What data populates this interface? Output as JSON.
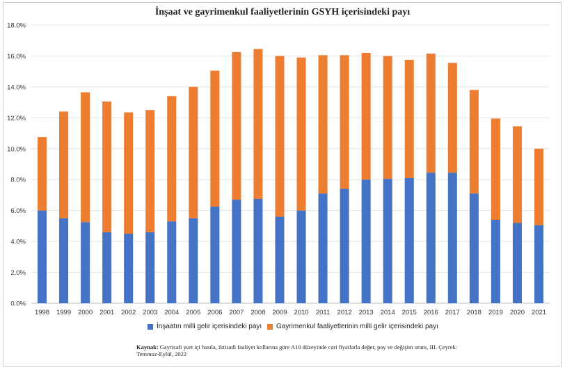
{
  "chart_data": {
    "type": "bar",
    "stacked": true,
    "title": "İnşaat ve gayrimenkul faaliyetlerinin GSYH içerisindeki payı",
    "categories": [
      "1998",
      "1999",
      "2000",
      "2001",
      "2002",
      "2003",
      "2004",
      "2005",
      "2006",
      "2007",
      "2008",
      "2009",
      "2010",
      "2011",
      "2012",
      "2013",
      "2014",
      "2015",
      "2016",
      "2017",
      "2018",
      "2019",
      "2020",
      "2021"
    ],
    "series": [
      {
        "name": "İnşaatın milli gelir içerisindeki payı",
        "color": "#4472c4",
        "values": [
          6.0,
          5.5,
          5.25,
          4.6,
          4.5,
          4.6,
          5.3,
          5.5,
          6.25,
          6.7,
          6.75,
          5.6,
          6.0,
          7.1,
          7.4,
          8.0,
          8.05,
          8.1,
          8.45,
          8.45,
          7.1,
          5.4,
          5.2,
          5.05
        ]
      },
      {
        "name": "Gayrimenkul faaliyetlerinin milli gelir içerisindeki payı",
        "color": "#ed7d31",
        "values": [
          4.75,
          6.9,
          8.4,
          8.45,
          7.85,
          7.9,
          8.1,
          8.5,
          8.8,
          9.55,
          9.7,
          10.4,
          9.9,
          8.95,
          8.65,
          8.2,
          7.95,
          7.65,
          7.7,
          7.1,
          6.7,
          6.55,
          6.25,
          4.95
        ]
      }
    ],
    "ylim": [
      0,
      18
    ],
    "yticks": [
      "0.0%",
      "2.0%",
      "4.0%",
      "6.0%",
      "8.0%",
      "10.0%",
      "12.0%",
      "14.0%",
      "16.0%",
      "18.0%"
    ],
    "grid": true,
    "legend_position": "bottom"
  },
  "source": {
    "label": "Kaynak:",
    "text": "Gayrisafi yurt içi hasıla, iktisadi faaliyet kollarına göre A10 düzeyinde cari fiyatlarla değer, pay ve değişim oranı, III. Çeyrek: Temmuz-Eylül, 2022"
  }
}
